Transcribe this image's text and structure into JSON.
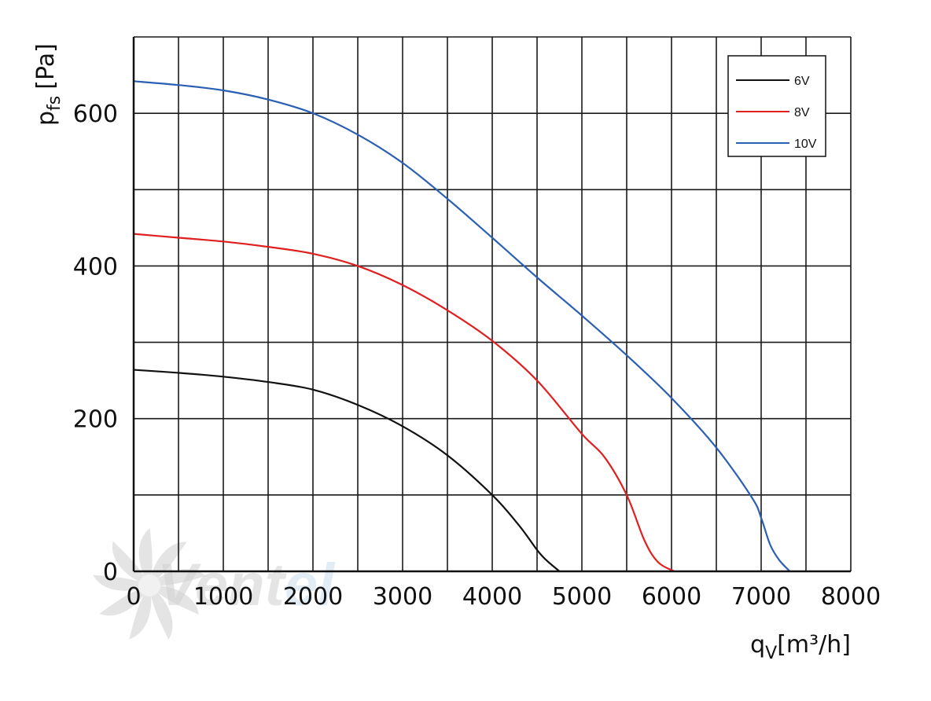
{
  "chart_data": {
    "type": "line",
    "title": "",
    "xlabel": {
      "main": "q",
      "sub": "V",
      "unit": "[m³/h]"
    },
    "ylabel": {
      "main": "p",
      "sub": "fs",
      "unit": "[Pa]"
    },
    "xlim": [
      0,
      8000
    ],
    "ylim": [
      0,
      700
    ],
    "x_ticks": [
      0,
      1000,
      2000,
      3000,
      4000,
      5000,
      6000,
      7000,
      8000
    ],
    "y_ticks": [
      0,
      200,
      400,
      600
    ],
    "grid": true,
    "legend_position": "top-right",
    "series": [
      {
        "name": "6V",
        "color": "#111111",
        "x": [
          0,
          500,
          1000,
          1500,
          2000,
          2500,
          3000,
          3500,
          4000,
          4300,
          4500,
          4600,
          4750
        ],
        "y": [
          264,
          260,
          255,
          248,
          238,
          218,
          190,
          152,
          100,
          60,
          28,
          15,
          0
        ]
      },
      {
        "name": "8V",
        "color": "#e02020",
        "x": [
          0,
          500,
          1000,
          1500,
          2000,
          2500,
          3000,
          3500,
          4000,
          4500,
          5000,
          5250,
          5500,
          5700,
          5850,
          6030
        ],
        "y": [
          442,
          437,
          432,
          425,
          416,
          400,
          375,
          342,
          302,
          250,
          180,
          150,
          100,
          40,
          12,
          0
        ]
      },
      {
        "name": "10V",
        "color": "#2a5fb4",
        "x": [
          0,
          500,
          1000,
          1500,
          2000,
          2500,
          3000,
          3500,
          4000,
          4500,
          5000,
          5500,
          6000,
          6500,
          6900,
          7000,
          7100,
          7200,
          7320
        ],
        "y": [
          642,
          637,
          630,
          618,
          600,
          572,
          535,
          488,
          437,
          385,
          335,
          283,
          227,
          162,
          96,
          70,
          35,
          15,
          0
        ]
      }
    ]
  },
  "watermark": {
    "text_part1": "Vent",
    "text_part2": "el",
    "color1": "#d3d3d3",
    "color2": "#cfe0ef"
  }
}
